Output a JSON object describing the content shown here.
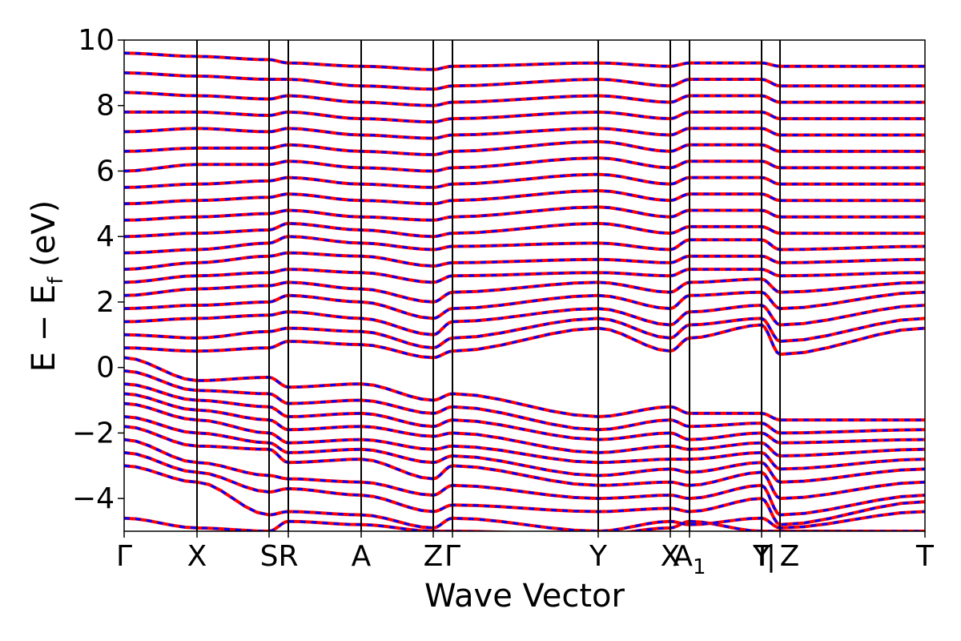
{
  "chart_data": {
    "type": "line",
    "title": "",
    "xlabel": "Wave Vector",
    "ylabel_parts": {
      "base": "E  −  E",
      "sub": "f",
      "unit": " (eV)"
    },
    "ylim": [
      -5,
      10
    ],
    "yticks": [
      -4,
      -2,
      0,
      2,
      4,
      6,
      8,
      10
    ],
    "ytick_labels": [
      "−4",
      "−2",
      "0",
      "2",
      "4",
      "6",
      "8",
      "10"
    ],
    "xlim": [
      0,
      1
    ],
    "kpoint_labels": [
      {
        "label": "Γ",
        "x": 0.0
      },
      {
        "label": "X",
        "x": 0.091
      },
      {
        "label": "S",
        "x": 0.181
      },
      {
        "label": "R",
        "x": 0.205
      },
      {
        "label": "A",
        "x": 0.296
      },
      {
        "label": "Z",
        "x": 0.386
      },
      {
        "label": "Γ",
        "x": 0.41
      },
      {
        "label": "Y",
        "x": 0.592
      },
      {
        "label": "X",
        "x": 0.682
      },
      {
        "label": "A",
        "x": 0.706,
        "sub": "1"
      },
      {
        "label": "Y",
        "x": 0.796
      },
      {
        "label": "T",
        "x": 0.797
      },
      {
        "label": "|",
        "x": 0.808
      },
      {
        "label": "Z",
        "x": 0.831
      },
      {
        "label": "T",
        "x": 1.0
      }
    ],
    "vlines": [
      0.091,
      0.181,
      0.205,
      0.296,
      0.386,
      0.41,
      0.592,
      0.682,
      0.706,
      0.796,
      0.819
    ],
    "series": [
      {
        "color": "#ff0000",
        "style": "solid"
      },
      {
        "color": "#0000ff",
        "style": "dashed"
      }
    ],
    "bands": [
      [
        -4.6,
        -4.9,
        -5.0,
        -4.7,
        -4.8,
        -5.0,
        -5.0,
        -5.1,
        -4.9,
        -4.7,
        -5.0,
        -5.0,
        -5.0
      ],
      [
        -3.0,
        -3.5,
        -4.5,
        -4.4,
        -4.5,
        -4.9,
        -4.6,
        -5.0,
        -4.7,
        -4.8,
        -4.6,
        -4.9,
        -4.4
      ],
      [
        -2.6,
        -3.2,
        -3.8,
        -3.7,
        -3.9,
        -4.4,
        -4.2,
        -4.4,
        -4.3,
        -4.4,
        -4.0,
        -4.8,
        -4.1
      ],
      [
        -2.2,
        -2.9,
        -3.3,
        -3.4,
        -3.5,
        -3.9,
        -3.6,
        -4.0,
        -3.9,
        -4.0,
        -3.6,
        -4.5,
        -3.9
      ],
      [
        -1.8,
        -2.4,
        -2.5,
        -2.9,
        -2.8,
        -3.4,
        -3.0,
        -3.6,
        -3.5,
        -3.6,
        -3.2,
        -4.0,
        -3.5
      ],
      [
        -1.5,
        -2.0,
        -2.3,
        -2.6,
        -2.5,
        -2.9,
        -2.7,
        -3.3,
        -3.1,
        -3.2,
        -2.9,
        -3.5,
        -3.1
      ],
      [
        -1.1,
        -1.6,
        -2.0,
        -2.3,
        -2.2,
        -2.5,
        -2.4,
        -2.9,
        -2.8,
        -2.8,
        -2.6,
        -3.1,
        -2.8
      ],
      [
        -0.8,
        -1.3,
        -1.6,
        -1.9,
        -1.8,
        -2.1,
        -2.0,
        -2.6,
        -2.4,
        -2.5,
        -2.3,
        -2.7,
        -2.5
      ],
      [
        -0.5,
        -1.0,
        -1.2,
        -1.5,
        -1.4,
        -1.8,
        -1.6,
        -2.2,
        -2.0,
        -2.2,
        -2.0,
        -2.3,
        -2.2
      ],
      [
        -0.1,
        -0.7,
        -0.8,
        -1.1,
        -1.0,
        -1.4,
        -1.2,
        -1.9,
        -1.6,
        -1.8,
        -1.7,
        -2.0,
        -1.9
      ],
      [
        0.3,
        -0.4,
        -0.3,
        -0.6,
        -0.5,
        -1.0,
        -0.8,
        -1.5,
        -1.2,
        -1.4,
        -1.4,
        -1.6,
        -1.6
      ],
      [
        0.6,
        0.5,
        0.6,
        0.8,
        0.7,
        0.3,
        0.5,
        1.2,
        0.5,
        0.9,
        1.3,
        0.4,
        1.2
      ],
      [
        1.0,
        0.9,
        1.1,
        1.2,
        1.1,
        0.6,
        0.9,
        1.5,
        0.9,
        1.3,
        1.5,
        0.8,
        1.5
      ],
      [
        1.4,
        1.5,
        1.6,
        1.7,
        1.5,
        1.0,
        1.4,
        1.8,
        1.3,
        1.7,
        1.9,
        1.3,
        1.9
      ],
      [
        1.8,
        1.9,
        2.0,
        2.2,
        2.0,
        1.5,
        1.8,
        2.2,
        1.8,
        2.2,
        2.3,
        1.8,
        2.3
      ],
      [
        2.2,
        2.4,
        2.5,
        2.6,
        2.4,
        2.0,
        2.3,
        2.6,
        2.3,
        2.6,
        2.7,
        2.3,
        2.6
      ],
      [
        2.6,
        2.8,
        2.9,
        3.0,
        2.9,
        2.6,
        2.8,
        2.9,
        2.8,
        3.0,
        3.0,
        2.8,
        2.9
      ],
      [
        3.0,
        3.2,
        3.4,
        3.5,
        3.4,
        3.1,
        3.2,
        3.3,
        3.2,
        3.4,
        3.4,
        3.2,
        3.3
      ],
      [
        3.5,
        3.6,
        3.8,
        4.0,
        3.8,
        3.6,
        3.7,
        3.8,
        3.6,
        3.9,
        3.9,
        3.6,
        3.7
      ],
      [
        4.0,
        4.1,
        4.2,
        4.4,
        4.2,
        4.0,
        4.1,
        4.4,
        4.1,
        4.3,
        4.3,
        4.1,
        4.1
      ],
      [
        4.5,
        4.6,
        4.7,
        4.8,
        4.6,
        4.5,
        4.6,
        4.9,
        4.6,
        4.8,
        4.8,
        4.6,
        4.6
      ],
      [
        5.0,
        5.1,
        5.2,
        5.3,
        5.1,
        5.0,
        5.1,
        5.4,
        5.1,
        5.3,
        5.3,
        5.1,
        5.1
      ],
      [
        5.5,
        5.6,
        5.7,
        5.8,
        5.6,
        5.5,
        5.6,
        5.9,
        5.6,
        5.8,
        5.8,
        5.6,
        5.6
      ],
      [
        6.0,
        6.2,
        6.2,
        6.3,
        6.1,
        6.0,
        6.1,
        6.4,
        6.1,
        6.3,
        6.3,
        6.1,
        6.1
      ],
      [
        6.6,
        6.7,
        6.7,
        6.8,
        6.6,
        6.5,
        6.6,
        6.9,
        6.6,
        6.8,
        6.8,
        6.6,
        6.6
      ],
      [
        7.2,
        7.3,
        7.2,
        7.3,
        7.1,
        7.0,
        7.1,
        7.3,
        7.1,
        7.3,
        7.3,
        7.1,
        7.1
      ],
      [
        7.8,
        7.8,
        7.7,
        7.8,
        7.6,
        7.5,
        7.6,
        7.8,
        7.6,
        7.8,
        7.8,
        7.6,
        7.6
      ],
      [
        8.4,
        8.3,
        8.2,
        8.3,
        8.1,
        8.0,
        8.1,
        8.3,
        8.1,
        8.3,
        8.3,
        8.1,
        8.1
      ],
      [
        9.0,
        8.9,
        8.8,
        8.8,
        8.6,
        8.5,
        8.6,
        8.8,
        8.6,
        8.8,
        8.8,
        8.6,
        8.6
      ],
      [
        9.6,
        9.5,
        9.4,
        9.3,
        9.2,
        9.1,
        9.2,
        9.3,
        9.2,
        9.3,
        9.3,
        9.2,
        9.2
      ]
    ]
  }
}
